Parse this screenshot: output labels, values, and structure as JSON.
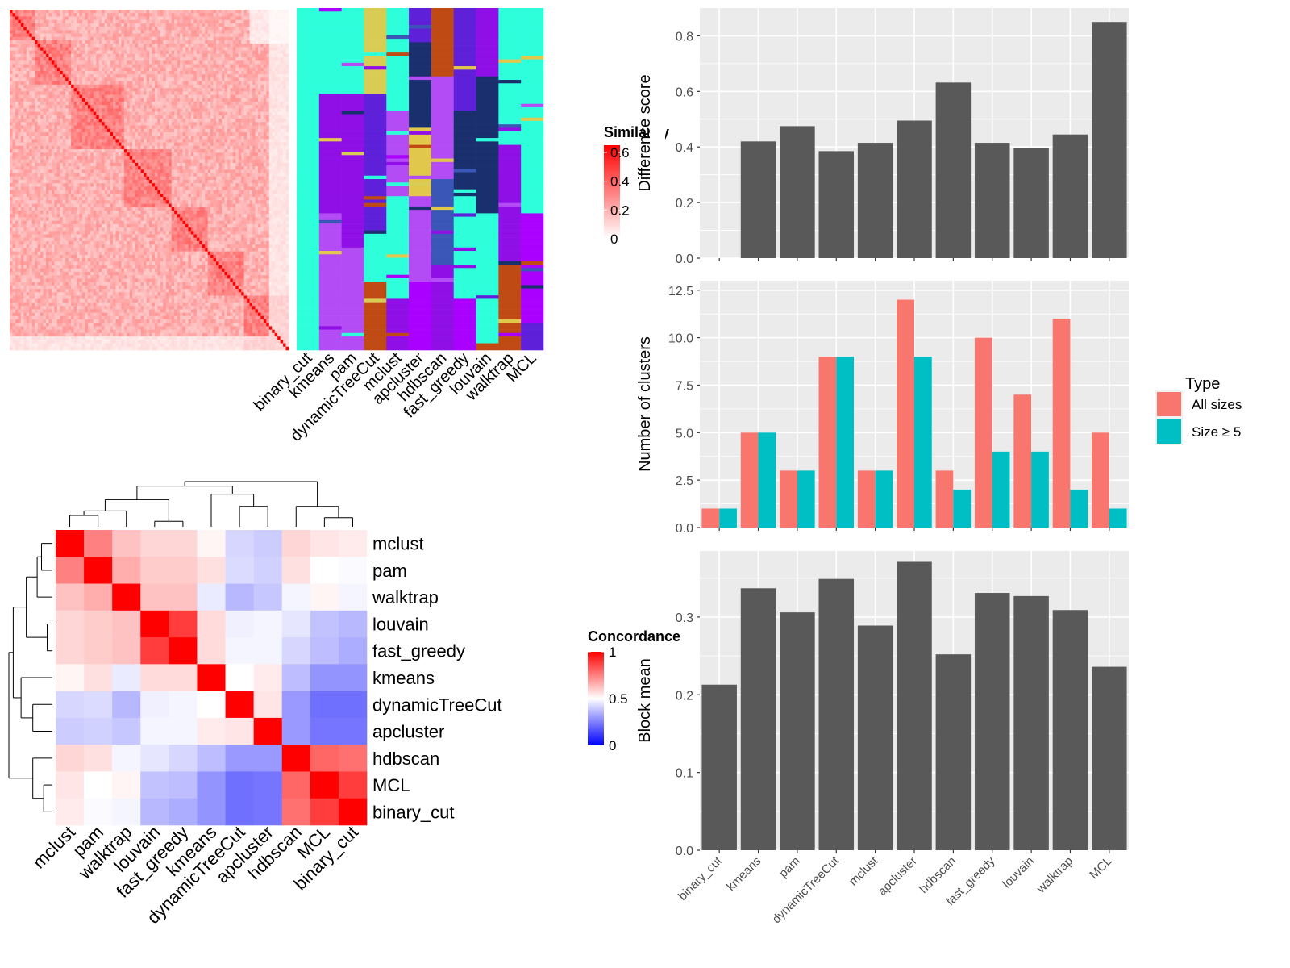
{
  "methods_by_x": [
    "binary_cut",
    "kmeans",
    "pam",
    "dynamicTreeCut",
    "mclust",
    "apcluster",
    "hdbscan",
    "fast_greedy",
    "louvain",
    "walktrap",
    "MCL"
  ],
  "concordance_order": [
    "mclust",
    "pam",
    "walktrap",
    "louvain",
    "fast_greedy",
    "kmeans",
    "dynamicTreeCut",
    "apcluster",
    "hdbscan",
    "MCL",
    "binary_cut"
  ],
  "legends": {
    "similarity": {
      "title": "Similarity",
      "ticks": [
        "0.6",
        "0.4",
        "0.2",
        "0"
      ],
      "colors": [
        "#ffffff",
        "#ff0000"
      ]
    },
    "concordance": {
      "title": "Concordance",
      "ticks": [
        "1",
        "0.5",
        "0"
      ],
      "colors": [
        "#0000ff",
        "#ffffff",
        "#ff0000"
      ]
    },
    "type": {
      "title": "Type",
      "items": [
        "All sizes",
        "Size ≥ 5"
      ],
      "colors": [
        "#f8766d",
        "#00bfc4"
      ]
    }
  },
  "chart_data": [
    {
      "type": "heatmap",
      "title": "",
      "rows": 100,
      "cols": 100,
      "value_range": [
        0,
        0.6
      ],
      "legend_title": "Similarity"
    },
    {
      "type": "heatmap",
      "title": "",
      "rows": 100,
      "columns": [
        "binary_cut",
        "kmeans",
        "pam",
        "dynamicTreeCut",
        "mclust",
        "apcluster",
        "hdbscan",
        "fast_greedy",
        "louvain",
        "walktrap",
        "MCL"
      ]
    },
    {
      "type": "heatmap",
      "title": "",
      "rows": [
        "mclust",
        "pam",
        "walktrap",
        "louvain",
        "fast_greedy",
        "kmeans",
        "dynamicTreeCut",
        "apcluster",
        "hdbscan",
        "MCL",
        "binary_cut"
      ],
      "columns": [
        "mclust",
        "pam",
        "walktrap",
        "louvain",
        "fast_greedy",
        "kmeans",
        "dynamicTreeCut",
        "apcluster",
        "hdbscan",
        "MCL",
        "binary_cut"
      ],
      "values": [
        [
          1.0,
          0.75,
          0.62,
          0.58,
          0.58,
          0.52,
          0.42,
          0.4,
          0.58,
          0.55,
          0.54
        ],
        [
          0.75,
          1.0,
          0.66,
          0.6,
          0.6,
          0.56,
          0.43,
          0.41,
          0.56,
          0.5,
          0.49
        ],
        [
          0.62,
          0.66,
          1.0,
          0.62,
          0.62,
          0.46,
          0.36,
          0.39,
          0.48,
          0.52,
          0.48
        ],
        [
          0.58,
          0.6,
          0.62,
          1.0,
          0.88,
          0.57,
          0.47,
          0.48,
          0.45,
          0.38,
          0.36
        ],
        [
          0.58,
          0.6,
          0.62,
          0.88,
          1.0,
          0.57,
          0.48,
          0.48,
          0.42,
          0.37,
          0.34
        ],
        [
          0.52,
          0.56,
          0.46,
          0.57,
          0.57,
          1.0,
          0.5,
          0.54,
          0.37,
          0.29,
          0.29
        ],
        [
          0.42,
          0.43,
          0.36,
          0.47,
          0.48,
          0.5,
          1.0,
          0.55,
          0.3,
          0.22,
          0.22
        ],
        [
          0.4,
          0.41,
          0.39,
          0.48,
          0.48,
          0.54,
          0.55,
          1.0,
          0.3,
          0.23,
          0.23
        ],
        [
          0.58,
          0.56,
          0.48,
          0.45,
          0.42,
          0.37,
          0.3,
          0.3,
          1.0,
          0.8,
          0.78
        ],
        [
          0.55,
          0.5,
          0.52,
          0.38,
          0.37,
          0.29,
          0.22,
          0.23,
          0.8,
          1.0,
          0.88
        ],
        [
          0.54,
          0.49,
          0.48,
          0.36,
          0.34,
          0.29,
          0.22,
          0.23,
          0.78,
          0.88,
          1.0
        ]
      ],
      "value_range": [
        0,
        1
      ],
      "legend_title": "Concordance"
    },
    {
      "type": "bar",
      "title": "",
      "xlabel": "",
      "ylabel": "Difference score",
      "categories": [
        "binary_cut",
        "kmeans",
        "pam",
        "dynamicTreeCut",
        "mclust",
        "apcluster",
        "hdbscan",
        "fast_greedy",
        "louvain",
        "walktrap",
        "MCL"
      ],
      "values": [
        null,
        0.42,
        0.475,
        0.385,
        0.415,
        0.495,
        0.632,
        0.415,
        0.395,
        0.445,
        0.85
      ],
      "ylim": [
        0,
        0.9
      ],
      "yticks": [
        "0.0",
        "0.2",
        "0.4",
        "0.6",
        "0.8"
      ],
      "grid": true
    },
    {
      "type": "bar",
      "title": "",
      "xlabel": "",
      "ylabel": "Number of clusters",
      "categories": [
        "binary_cut",
        "kmeans",
        "pam",
        "dynamicTreeCut",
        "mclust",
        "apcluster",
        "hdbscan",
        "fast_greedy",
        "louvain",
        "walktrap",
        "MCL"
      ],
      "series": [
        {
          "name": "All sizes",
          "values": [
            1,
            5,
            3,
            9,
            3,
            12,
            3,
            10,
            7,
            11,
            5
          ]
        },
        {
          "name": "Size ≥ 5",
          "values": [
            1,
            5,
            3,
            9,
            3,
            9,
            2,
            4,
            4,
            2,
            1
          ]
        }
      ],
      "ylim": [
        0,
        13
      ],
      "yticks": [
        "0.0",
        "2.5",
        "5.0",
        "7.5",
        "10.0",
        "12.5"
      ],
      "legend_title": "Type",
      "legend_position": "right",
      "grid": true
    },
    {
      "type": "bar",
      "title": "",
      "xlabel": "",
      "ylabel": "Block mean",
      "categories": [
        "binary_cut",
        "kmeans",
        "pam",
        "dynamicTreeCut",
        "mclust",
        "apcluster",
        "hdbscan",
        "fast_greedy",
        "louvain",
        "walktrap",
        "MCL"
      ],
      "values": [
        0.213,
        0.337,
        0.306,
        0.349,
        0.289,
        0.371,
        0.252,
        0.331,
        0.327,
        0.309,
        0.236
      ],
      "ylim": [
        0,
        0.385
      ],
      "yticks": [
        "0.0",
        "0.1",
        "0.2",
        "0.3"
      ],
      "grid": true
    }
  ]
}
